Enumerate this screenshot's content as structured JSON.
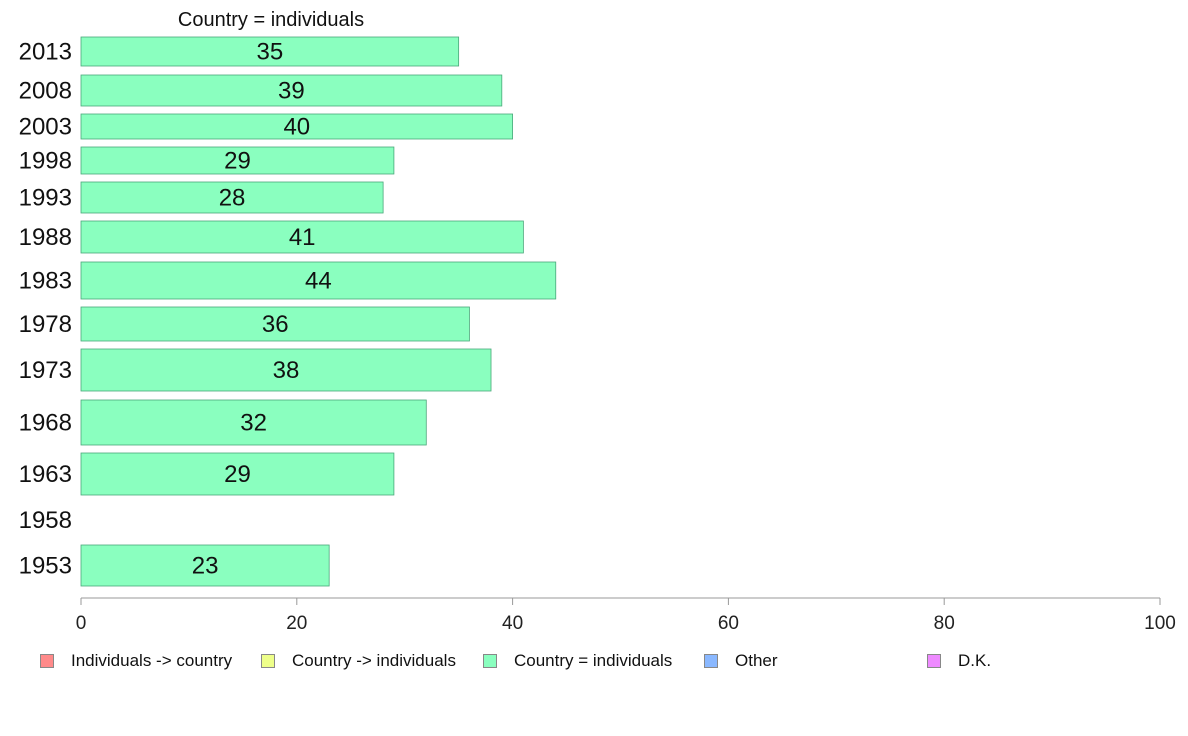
{
  "chart_data": {
    "type": "bar",
    "orientation": "horizontal",
    "title": "",
    "column_title": "Country = individuals",
    "categories": [
      "2013",
      "2008",
      "2003",
      "1998",
      "1993",
      "1988",
      "1983",
      "1978",
      "1973",
      "1968",
      "1963",
      "1958",
      "1953"
    ],
    "series": [
      {
        "name": "Country = individuals",
        "color": "#8affbf",
        "values": [
          35,
          39,
          40,
          29,
          28,
          41,
          44,
          36,
          38,
          32,
          29,
          null,
          23
        ]
      }
    ],
    "xlim": [
      0,
      100
    ],
    "xticks": [
      0,
      20,
      40,
      60,
      80,
      100
    ],
    "xlabel": "",
    "ylabel": "",
    "grid": false,
    "legend_position": "bottom",
    "legend": [
      {
        "label": "Individuals -> country",
        "color": "#ff8a8a"
      },
      {
        "label": "Country -> individuals",
        "color": "#eeff8a"
      },
      {
        "label": "Country = individuals",
        "color": "#8affbf"
      },
      {
        "label": "Other",
        "color": "#8ab8ff"
      },
      {
        "label": "D.K.",
        "color": "#ee8aff"
      }
    ]
  }
}
